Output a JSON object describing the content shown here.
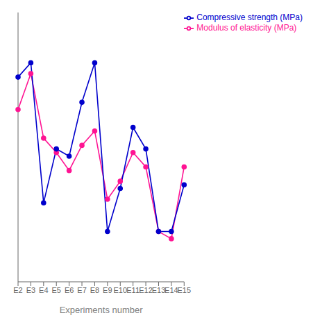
{
  "chart_data": {
    "type": "line",
    "xlabel": "Experiments number",
    "categories": [
      "E2",
      "E3",
      "E4",
      "E5",
      "E6",
      "E7",
      "E8",
      "E9",
      "E10",
      "E11",
      "E12",
      "E13",
      "E14",
      "E15"
    ],
    "series": [
      {
        "name": "Modulus of elasticity (MPa)",
        "color": "#FF1493",
        "marker": "circle",
        "values": [
          78,
          88,
          70,
          66,
          61,
          68,
          72,
          53,
          58,
          66,
          62,
          44,
          42,
          62
        ]
      },
      {
        "name": "Compressive strength (MPa)",
        "color": "#0000CC",
        "marker": "circle",
        "values": [
          87,
          91,
          52,
          67,
          65,
          80,
          91,
          44,
          56,
          73,
          67,
          44,
          44,
          57
        ]
      }
    ],
    "ylim": [
      30,
      105
    ],
    "grid": false,
    "legend": "upper right",
    "tick_labels": "x"
  }
}
